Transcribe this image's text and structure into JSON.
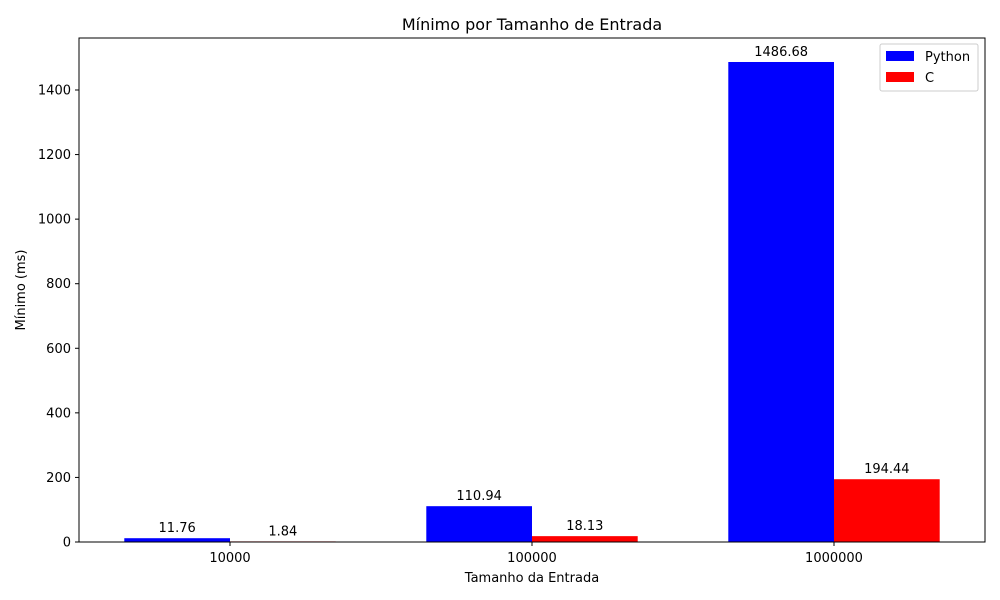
{
  "chart_data": {
    "type": "bar",
    "title": "Mínimo por Tamanho de Entrada",
    "xlabel": "Tamanho da Entrada",
    "ylabel": "Mínimo (ms)",
    "categories": [
      "10000",
      "100000",
      "1000000"
    ],
    "series": [
      {
        "name": "Python",
        "color": "#0000ff",
        "values": [
          11.76,
          110.94,
          1486.68
        ],
        "labels": [
          "11.76",
          "110.94",
          "1486.68"
        ]
      },
      {
        "name": "C",
        "color": "#ff0000",
        "values": [
          1.84,
          18.13,
          194.44
        ],
        "labels": [
          "1.84",
          "18.13",
          "194.44"
        ]
      }
    ],
    "ylim": [
      0,
      1561.01
    ],
    "yticks": [
      0,
      200,
      400,
      600,
      800,
      1000,
      1200,
      1400
    ],
    "ytick_labels": [
      "0",
      "200",
      "400",
      "600",
      "800",
      "1000",
      "1200",
      "1400"
    ],
    "grid": false,
    "legend_position": "top-right"
  }
}
